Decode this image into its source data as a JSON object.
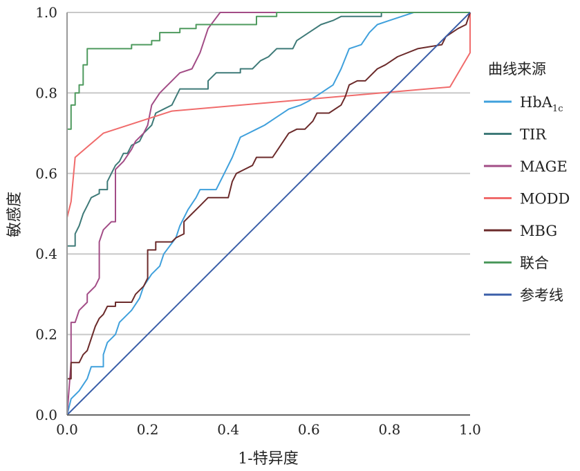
{
  "chart_data": {
    "type": "line",
    "title": "",
    "xlabel": "1-特异度",
    "ylabel": "敏感度",
    "xlim": [
      0,
      1
    ],
    "ylim": [
      0,
      1
    ],
    "grid": "horizontal",
    "x_ticks": [
      "0.0",
      "0.2",
      "0.4",
      "0.6",
      "0.8",
      "1.0"
    ],
    "y_ticks": [
      "0.0",
      "0.2",
      "0.4",
      "0.6",
      "0.8",
      "1.0"
    ],
    "legend_title": "曲线来源",
    "legend_placement": "right",
    "legend": [
      {
        "text": "HbA",
        "sub": "1c",
        "color": "#3fa0dc"
      },
      {
        "text": "TIR",
        "sub": "",
        "color": "#3e7a78"
      },
      {
        "text": "MAGE",
        "sub": "",
        "color": "#a24c86"
      },
      {
        "text": "MODD",
        "sub": "",
        "color": "#f06b6b"
      },
      {
        "text": "MBG",
        "sub": "",
        "color": "#6b2a2a"
      },
      {
        "text": "联合",
        "sub": "",
        "color": "#4e9a5e"
      },
      {
        "text": "参考线",
        "sub": "",
        "color": "#3a5ea8"
      }
    ],
    "series": [
      {
        "name": "HbA1c",
        "color": "#3fa0dc",
        "points": [
          [
            0,
            0
          ],
          [
            0.01,
            0.04
          ],
          [
            0.02,
            0.05
          ],
          [
            0.03,
            0.06
          ],
          [
            0.05,
            0.09
          ],
          [
            0.06,
            0.12
          ],
          [
            0.09,
            0.12
          ],
          [
            0.09,
            0.15
          ],
          [
            0.1,
            0.18
          ],
          [
            0.12,
            0.2
          ],
          [
            0.13,
            0.23
          ],
          [
            0.14,
            0.24
          ],
          [
            0.16,
            0.26
          ],
          [
            0.18,
            0.29
          ],
          [
            0.19,
            0.32
          ],
          [
            0.21,
            0.35
          ],
          [
            0.23,
            0.37
          ],
          [
            0.24,
            0.4
          ],
          [
            0.27,
            0.44
          ],
          [
            0.28,
            0.47
          ],
          [
            0.3,
            0.51
          ],
          [
            0.32,
            0.54
          ],
          [
            0.33,
            0.56
          ],
          [
            0.37,
            0.56
          ],
          [
            0.39,
            0.6
          ],
          [
            0.41,
            0.64
          ],
          [
            0.43,
            0.69
          ],
          [
            0.45,
            0.7
          ],
          [
            0.47,
            0.71
          ],
          [
            0.49,
            0.72
          ],
          [
            0.52,
            0.74
          ],
          [
            0.55,
            0.76
          ],
          [
            0.58,
            0.77
          ],
          [
            0.6,
            0.78
          ],
          [
            0.63,
            0.8
          ],
          [
            0.66,
            0.82
          ],
          [
            0.68,
            0.86
          ],
          [
            0.7,
            0.91
          ],
          [
            0.73,
            0.92
          ],
          [
            0.75,
            0.95
          ],
          [
            0.77,
            0.97
          ],
          [
            0.8,
            0.98
          ],
          [
            0.83,
            0.99
          ],
          [
            0.86,
            1
          ],
          [
            1,
            1
          ]
        ]
      },
      {
        "name": "TIR",
        "color": "#3e7a78",
        "points": [
          [
            0,
            0
          ],
          [
            0,
            0.42
          ],
          [
            0.02,
            0.42
          ],
          [
            0.02,
            0.45
          ],
          [
            0.03,
            0.47
          ],
          [
            0.04,
            0.5
          ],
          [
            0.05,
            0.52
          ],
          [
            0.06,
            0.54
          ],
          [
            0.08,
            0.55
          ],
          [
            0.08,
            0.56
          ],
          [
            0.1,
            0.56
          ],
          [
            0.1,
            0.58
          ],
          [
            0.11,
            0.6
          ],
          [
            0.12,
            0.62
          ],
          [
            0.13,
            0.63
          ],
          [
            0.14,
            0.65
          ],
          [
            0.15,
            0.65
          ],
          [
            0.16,
            0.67
          ],
          [
            0.18,
            0.68
          ],
          [
            0.19,
            0.7
          ],
          [
            0.21,
            0.72
          ],
          [
            0.22,
            0.75
          ],
          [
            0.24,
            0.76
          ],
          [
            0.26,
            0.77
          ],
          [
            0.27,
            0.79
          ],
          [
            0.28,
            0.81
          ],
          [
            0.35,
            0.81
          ],
          [
            0.35,
            0.83
          ],
          [
            0.37,
            0.85
          ],
          [
            0.43,
            0.85
          ],
          [
            0.43,
            0.86
          ],
          [
            0.46,
            0.86
          ],
          [
            0.47,
            0.87
          ],
          [
            0.48,
            0.88
          ],
          [
            0.5,
            0.89
          ],
          [
            0.52,
            0.91
          ],
          [
            0.56,
            0.91
          ],
          [
            0.57,
            0.93
          ],
          [
            0.6,
            0.95
          ],
          [
            0.63,
            0.97
          ],
          [
            0.66,
            0.98
          ],
          [
            0.68,
            0.99
          ],
          [
            0.78,
            0.99
          ],
          [
            0.78,
            1
          ],
          [
            1,
            1
          ]
        ]
      },
      {
        "name": "MAGE",
        "color": "#a24c86",
        "points": [
          [
            0,
            0
          ],
          [
            0.01,
            0.13
          ],
          [
            0.01,
            0.23
          ],
          [
            0.02,
            0.23
          ],
          [
            0.03,
            0.26
          ],
          [
            0.05,
            0.28
          ],
          [
            0.05,
            0.3
          ],
          [
            0.07,
            0.32
          ],
          [
            0.08,
            0.34
          ],
          [
            0.08,
            0.43
          ],
          [
            0.09,
            0.46
          ],
          [
            0.11,
            0.48
          ],
          [
            0.12,
            0.48
          ],
          [
            0.12,
            0.61
          ],
          [
            0.14,
            0.63
          ],
          [
            0.16,
            0.66
          ],
          [
            0.17,
            0.68
          ],
          [
            0.19,
            0.7
          ],
          [
            0.2,
            0.72
          ],
          [
            0.21,
            0.77
          ],
          [
            0.23,
            0.8
          ],
          [
            0.26,
            0.83
          ],
          [
            0.28,
            0.85
          ],
          [
            0.31,
            0.86
          ],
          [
            0.33,
            0.9
          ],
          [
            0.35,
            0.96
          ],
          [
            0.38,
            1
          ],
          [
            1,
            1
          ]
        ]
      },
      {
        "name": "MODD",
        "color": "#f06b6b",
        "points": [
          [
            0,
            0.49
          ],
          [
            0.01,
            0.53
          ],
          [
            0.02,
            0.64
          ],
          [
            0.09,
            0.7
          ],
          [
            0.26,
            0.755
          ],
          [
            0.95,
            0.815
          ],
          [
            1,
            0.9
          ],
          [
            1,
            1
          ]
        ]
      },
      {
        "name": "MBG",
        "color": "#6b2a2a",
        "points": [
          [
            0,
            0
          ],
          [
            0,
            0.09
          ],
          [
            0.01,
            0.09
          ],
          [
            0.01,
            0.13
          ],
          [
            0.03,
            0.13
          ],
          [
            0.04,
            0.15
          ],
          [
            0.05,
            0.16
          ],
          [
            0.06,
            0.19
          ],
          [
            0.07,
            0.22
          ],
          [
            0.08,
            0.24
          ],
          [
            0.09,
            0.25
          ],
          [
            0.1,
            0.27
          ],
          [
            0.12,
            0.27
          ],
          [
            0.12,
            0.28
          ],
          [
            0.16,
            0.28
          ],
          [
            0.17,
            0.3
          ],
          [
            0.19,
            0.32
          ],
          [
            0.2,
            0.34
          ],
          [
            0.2,
            0.41
          ],
          [
            0.22,
            0.41
          ],
          [
            0.22,
            0.43
          ],
          [
            0.26,
            0.43
          ],
          [
            0.27,
            0.44
          ],
          [
            0.29,
            0.45
          ],
          [
            0.29,
            0.48
          ],
          [
            0.31,
            0.5
          ],
          [
            0.33,
            0.52
          ],
          [
            0.35,
            0.54
          ],
          [
            0.4,
            0.54
          ],
          [
            0.41,
            0.58
          ],
          [
            0.42,
            0.6
          ],
          [
            0.44,
            0.61
          ],
          [
            0.46,
            0.62
          ],
          [
            0.47,
            0.64
          ],
          [
            0.51,
            0.64
          ],
          [
            0.53,
            0.67
          ],
          [
            0.55,
            0.7
          ],
          [
            0.57,
            0.71
          ],
          [
            0.59,
            0.71
          ],
          [
            0.61,
            0.73
          ],
          [
            0.62,
            0.75
          ],
          [
            0.65,
            0.75
          ],
          [
            0.68,
            0.77
          ],
          [
            0.69,
            0.79
          ],
          [
            0.7,
            0.82
          ],
          [
            0.72,
            0.83
          ],
          [
            0.74,
            0.83
          ],
          [
            0.77,
            0.86
          ],
          [
            0.79,
            0.87
          ],
          [
            0.82,
            0.89
          ],
          [
            0.87,
            0.91
          ],
          [
            0.93,
            0.92
          ],
          [
            0.94,
            0.94
          ],
          [
            0.97,
            0.96
          ],
          [
            0.99,
            0.97
          ],
          [
            1,
            1
          ]
        ]
      },
      {
        "name": "联合",
        "color": "#4e9a5e",
        "points": [
          [
            0,
            0
          ],
          [
            0,
            0.71
          ],
          [
            0.01,
            0.71
          ],
          [
            0.01,
            0.77
          ],
          [
            0.02,
            0.77
          ],
          [
            0.02,
            0.8
          ],
          [
            0.03,
            0.8
          ],
          [
            0.03,
            0.82
          ],
          [
            0.04,
            0.82
          ],
          [
            0.04,
            0.87
          ],
          [
            0.05,
            0.87
          ],
          [
            0.05,
            0.91
          ],
          [
            0.16,
            0.91
          ],
          [
            0.16,
            0.92
          ],
          [
            0.21,
            0.92
          ],
          [
            0.21,
            0.93
          ],
          [
            0.23,
            0.93
          ],
          [
            0.23,
            0.95
          ],
          [
            0.28,
            0.95
          ],
          [
            0.28,
            0.96
          ],
          [
            0.32,
            0.96
          ],
          [
            0.32,
            0.97
          ],
          [
            0.47,
            0.97
          ],
          [
            0.47,
            0.99
          ],
          [
            0.52,
            0.99
          ],
          [
            0.52,
            1
          ],
          [
            1,
            1
          ]
        ]
      },
      {
        "name": "参考线",
        "color": "#3a5ea8",
        "points": [
          [
            0,
            0
          ],
          [
            1,
            1
          ]
        ]
      }
    ]
  }
}
